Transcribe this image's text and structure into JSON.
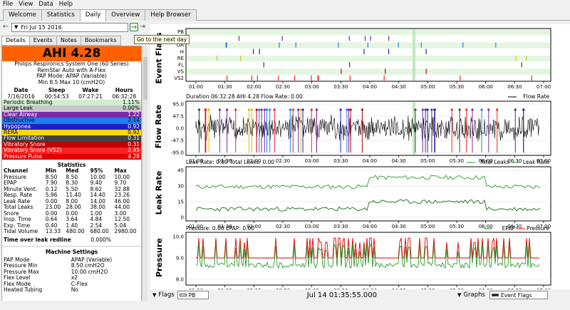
{
  "menu": [
    "File",
    "View",
    "Data",
    "Help"
  ],
  "tabs": [
    "Welcome",
    "Statistics",
    "Daily",
    "Overview",
    "Help Browser"
  ],
  "active_tab": "Daily",
  "date": "Fri Jul 15 2016",
  "tooltip": "Go to the next day",
  "subtabs": [
    "Details",
    "Events",
    "Notes",
    "Bookmarks"
  ],
  "ahi": "AHI 4.28",
  "machine_info": [
    "Philips Respironics System One (60 Series)",
    "RemStar Auto with A-Flex",
    "PAP Mode: APAP (Variable)",
    "Min 8.5 Max 10 (cmH2O)"
  ],
  "summary": {
    "headers": [
      "Date",
      "Sleep",
      "Wake",
      "Hours"
    ],
    "values": [
      "7/16/2016",
      "00:54:53",
      "07:27:21",
      "06:32:28"
    ]
  },
  "events": [
    {
      "name": "Periodic Breathing",
      "value": "1.11%",
      "bg": "#cfeecf",
      "fg": "#000"
    },
    {
      "name": "Large Leak",
      "value": "0.00%",
      "bg": "#c8c8c8",
      "fg": "#000"
    },
    {
      "name": "Clear Airway",
      "value": "1.22",
      "bg": "#7a2aa8",
      "fg": "#fff"
    },
    {
      "name": "Obstructive",
      "value": "2.14",
      "bg": "#1e7ff0",
      "fg": "#000"
    },
    {
      "name": "Hypopnea",
      "value": "0.92",
      "bg": "#2020c0",
      "fg": "#fff"
    },
    {
      "name": "RERA",
      "value": "0.92",
      "bg": "#ffd700",
      "fg": "#000"
    },
    {
      "name": "Flow Limitation",
      "value": "0.31",
      "bg": "#404040",
      "fg": "#fff"
    },
    {
      "name": "Vibratory Snore",
      "value": "0.31",
      "bg": "#c00000",
      "fg": "#fff"
    },
    {
      "name": "Vibratory Snore (VS2)",
      "value": "2.45",
      "bg": "#ff2020",
      "fg": "#fff"
    },
    {
      "name": "Pressure Pulse",
      "value": "4.28",
      "bg": "#e00000",
      "fg": "#fff"
    }
  ],
  "statistics": {
    "title": "Statistics",
    "headers": [
      "Channel",
      "Min",
      "Med",
      "95%",
      "Max"
    ],
    "rows": [
      [
        "Pressure",
        "8.50",
        "8.50",
        "10.00",
        "10.00"
      ],
      [
        "EPAP",
        "7.90",
        "8.30",
        "9.40",
        "9.70"
      ],
      [
        "Minute Vent.",
        "0.12",
        "5.50",
        "8.62",
        "32.88"
      ],
      [
        "Resp. Rate",
        "5.96",
        "11.40",
        "14.40",
        "23.26"
      ],
      [
        "Leak Rate",
        "0.00",
        "8.00",
        "14.00",
        "46.00"
      ],
      [
        "Total Leaks",
        "23.00",
        "28.00",
        "38.00",
        "44.00"
      ],
      [
        "Snore",
        "0.00",
        "0.00",
        "1.00",
        "3.00"
      ],
      [
        "Insp. Time",
        "0.64",
        "3.64",
        "4.84",
        "12.50"
      ],
      [
        "Exp. Time",
        "0.40",
        "1.40",
        "2.54",
        "5.04"
      ],
      [
        "Tidal Volume",
        "13.33",
        "480.00",
        "680.00",
        "2980.00"
      ]
    ]
  },
  "time_over_leak": {
    "label": "Time over leak redline",
    "value": "0.000%"
  },
  "machine_settings": {
    "title": "Machine Settings",
    "rows": [
      [
        "PAP Mode",
        "APAP (Variable)"
      ],
      [
        "Pressure Min",
        "8.50 cmH2O"
      ],
      [
        "Pressure Max",
        "10.00 cmH2O"
      ],
      [
        "Flex Level",
        "x2"
      ],
      [
        "Flex Mode",
        "C-Flex"
      ],
      [
        "Heated Tubing",
        "No"
      ]
    ]
  },
  "time_ticks": [
    "01:00",
    "01:30",
    "02:00",
    "02:30",
    "03:00",
    "03:30",
    "04:00",
    "04:30",
    "05:00",
    "05:30",
    "06:00",
    "06:30",
    "07:00"
  ],
  "event_flags": {
    "title": "Event Flags",
    "labels": [
      "PB",
      "CA",
      "OA",
      "H",
      "RE",
      "FL",
      "VS",
      "VS2"
    ]
  },
  "flow": {
    "title": "Flow Rate",
    "header": "Duration 06:32:28 AHI 4.28 Flow Rate: 0.00",
    "legend": "Flow Rate",
    "ticks": [
      "95.0",
      "47.5",
      "0.0",
      "-47.5",
      "-95.0"
    ]
  },
  "leak": {
    "title": "Leak Rate",
    "header": "Leak Rate: 0.00 Total Leaks: 0.00",
    "legend1": "Total Leaks",
    "legend2": "Leak Rate",
    "ticks": [
      "45",
      "30",
      "15",
      "0"
    ]
  },
  "pressure": {
    "title": "Pressure",
    "header": "Pressure: 0.00 EPAP: 0.00",
    "legend1": "EPAP",
    "legend2": "Pressure",
    "ticks": [
      "10.0",
      "9.0",
      "8.0"
    ]
  },
  "bottom": {
    "flags_label": "Flags",
    "flags_combo": "PB",
    "time": "Jul 14 01:35:55.000",
    "graphs_label": "Graphs",
    "graphs_combo": "Event Flags"
  }
}
